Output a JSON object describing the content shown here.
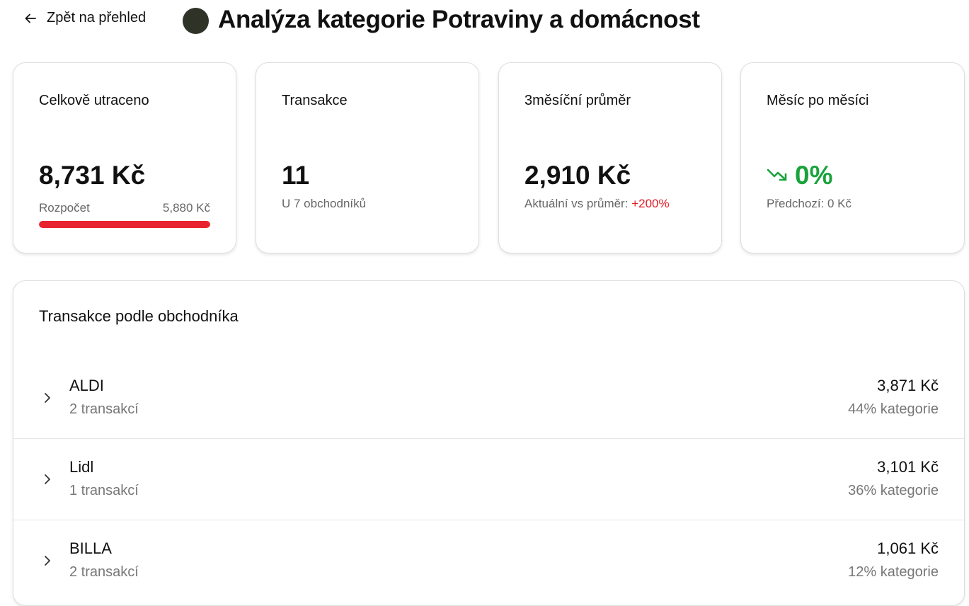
{
  "header": {
    "back_label": "Zpět na přehled",
    "category_color": "#2f3327",
    "title": "Analýza kategorie Potraviny a domácnost"
  },
  "cards": {
    "total": {
      "label": "Celkově utraceno",
      "value": "8,731 Kč",
      "budget_label": "Rozpočet",
      "budget_value": "5,880 Kč",
      "budget_progress_percent": 100,
      "budget_bar_color": "#e8232f"
    },
    "transactions": {
      "label": "Transakce",
      "value": "11",
      "sub": "U 7 obchodníků"
    },
    "average": {
      "label": "3měsíční průměr",
      "value": "2,910 Kč",
      "sub_prefix": "Aktuální vs průměr:",
      "sub_change": "+200%",
      "change_color": "#e01a22"
    },
    "month_over_month": {
      "label": "Měsíc po měsíci",
      "trend_icon": "trending-down-icon",
      "value": "0%",
      "value_color": "#1aa33c",
      "sub": "Předchozí: 0 Kč"
    }
  },
  "merchants_panel": {
    "title": "Transakce podle obchodníka",
    "rows": [
      {
        "name": "ALDI",
        "count": "2 transakcí",
        "amount": "3,871 Kč",
        "share": "44% kategorie"
      },
      {
        "name": "Lidl",
        "count": "1 transakcí",
        "amount": "3,101 Kč",
        "share": "36% kategorie"
      },
      {
        "name": "BILLA",
        "count": "2 transakcí",
        "amount": "1,061 Kč",
        "share": "12% kategorie"
      }
    ]
  }
}
